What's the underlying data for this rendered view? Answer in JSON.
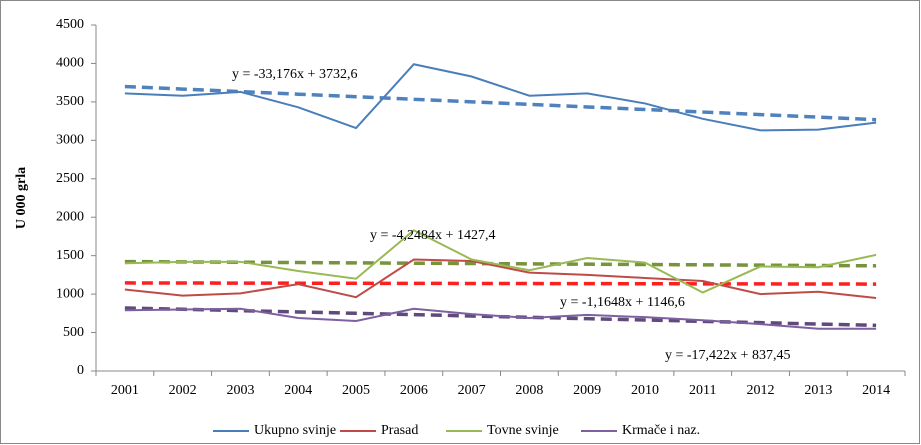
{
  "chart_data": {
    "type": "line",
    "y_label": "U 000 grla",
    "categories": [
      "2001",
      "2002",
      "2003",
      "2004",
      "2005",
      "2006",
      "2007",
      "2008",
      "2009",
      "2010",
      "2011",
      "2012",
      "2013",
      "2014"
    ],
    "ylim": [
      0,
      4500
    ],
    "yticks": [
      0,
      500,
      1000,
      1500,
      2000,
      2500,
      3000,
      3500,
      4000,
      4500
    ],
    "series": [
      {
        "name": "Ukupno svinje",
        "color": "#4a7ebb",
        "values": [
          3610,
          3580,
          3630,
          3430,
          3160,
          3990,
          3830,
          3580,
          3610,
          3480,
          3280,
          3130,
          3140,
          3230
        ],
        "trend": {
          "color": "#4f81bd",
          "equation": "y = -33,176x + 3732,6",
          "values": [
            3699.4,
            3666.2,
            3633.1,
            3599.9,
            3566.7,
            3533.5,
            3500.4,
            3467.2,
            3434.0,
            3400.8,
            3367.7,
            3334.5,
            3301.3,
            3268.1
          ]
        }
      },
      {
        "name": "Prasad",
        "color": "#be4b48",
        "values": [
          1060,
          980,
          1010,
          1130,
          960,
          1450,
          1430,
          1280,
          1250,
          1210,
          1170,
          1000,
          1030,
          950
        ],
        "trend": {
          "color": "#ff1f1f",
          "equation": "y = -1,1648x + 1146,6",
          "values": [
            1145.4,
            1144.3,
            1143.1,
            1141.9,
            1140.8,
            1139.6,
            1138.4,
            1137.3,
            1136.1,
            1134.9,
            1133.8,
            1132.6,
            1131.5,
            1130.3
          ]
        }
      },
      {
        "name": "Tovne svinje",
        "color": "#98b954",
        "values": [
          1400,
          1420,
          1420,
          1300,
          1200,
          1830,
          1450,
          1310,
          1470,
          1410,
          1020,
          1360,
          1350,
          1510
        ],
        "trend": {
          "color": "#77933c",
          "equation": "y = -4,2484x + 1427,4",
          "values": [
            1423.2,
            1418.9,
            1414.7,
            1410.4,
            1406.2,
            1401.9,
            1397.7,
            1393.4,
            1389.2,
            1384.9,
            1380.7,
            1376.4,
            1372.2,
            1367.9
          ]
        }
      },
      {
        "name": "Krmače i naz.",
        "color": "#7d60a0",
        "values": [
          790,
          800,
          810,
          690,
          650,
          810,
          740,
          690,
          730,
          700,
          660,
          610,
          550,
          550
        ],
        "trend": {
          "color": "#604a7b",
          "equation": "y = -17,422x + 837,45",
          "values": [
            820.0,
            802.6,
            785.2,
            767.8,
            750.3,
            732.9,
            715.5,
            698.1,
            680.7,
            663.2,
            645.8,
            628.4,
            611.0,
            593.6
          ]
        }
      }
    ]
  }
}
